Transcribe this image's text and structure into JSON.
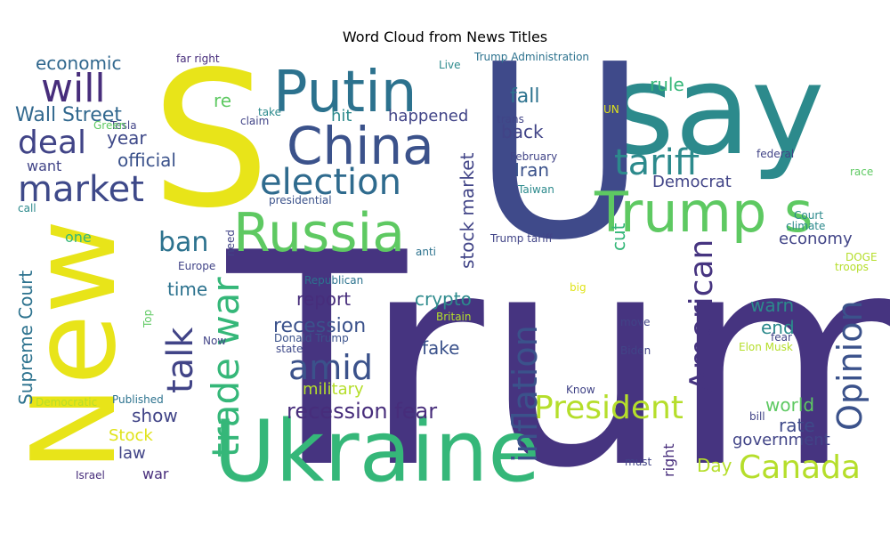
{
  "chart_data": {
    "type": "wordcloud",
    "title": "Word Cloud from News Titles",
    "words": [
      {
        "text": "Trump",
        "weight": 100,
        "color": "#463480"
      },
      {
        "text": "say",
        "weight": 58,
        "color": "#2c8a8c"
      },
      {
        "text": "U",
        "weight": 62,
        "color": "#3f4a8a"
      },
      {
        "text": "S",
        "weight": 60,
        "color": "#e8e419"
      },
      {
        "text": "New",
        "weight": 48,
        "color": "#e8e419"
      },
      {
        "text": "Ukraine",
        "weight": 40,
        "color": "#35b779"
      },
      {
        "text": "Putin",
        "weight": 22,
        "color": "#2c728e"
      },
      {
        "text": "China",
        "weight": 20,
        "color": "#3b528b"
      },
      {
        "text": "Russia",
        "weight": 21,
        "color": "#5ec962"
      },
      {
        "text": "Trump s",
        "weight": 22,
        "color": "#5ec962"
      },
      {
        "text": "election",
        "weight": 15,
        "color": "#2f6b8e"
      },
      {
        "text": "tariff",
        "weight": 14,
        "color": "#2c8a8c"
      },
      {
        "text": "market",
        "weight": 13,
        "color": "#3e4989"
      },
      {
        "text": "will",
        "weight": 13,
        "color": "#472d7b"
      },
      {
        "text": "deal",
        "weight": 11,
        "color": "#414487"
      },
      {
        "text": "Wall Street",
        "weight": 8,
        "color": "#31688e"
      },
      {
        "text": "economic",
        "weight": 6,
        "color": "#31688e"
      },
      {
        "text": "year",
        "weight": 6,
        "color": "#3e4989"
      },
      {
        "text": "official",
        "weight": 7,
        "color": "#3b528b"
      },
      {
        "text": "want",
        "weight": 5,
        "color": "#414487"
      },
      {
        "text": "re",
        "weight": 6,
        "color": "#5ec962"
      },
      {
        "text": "hit",
        "weight": 5,
        "color": "#2c8a8c"
      },
      {
        "text": "happened",
        "weight": 6,
        "color": "#414487"
      },
      {
        "text": "fall",
        "weight": 6,
        "color": "#2c728e"
      },
      {
        "text": "rule",
        "weight": 6,
        "color": "#35b779"
      },
      {
        "text": "back",
        "weight": 6,
        "color": "#414487"
      },
      {
        "text": "Iran",
        "weight": 6,
        "color": "#3b528b"
      },
      {
        "text": "Democrat",
        "weight": 5,
        "color": "#414487"
      },
      {
        "text": "ban",
        "weight": 10,
        "color": "#2c728e"
      },
      {
        "text": "talk",
        "weight": 13,
        "color": "#414487"
      },
      {
        "text": "time",
        "weight": 6,
        "color": "#2c728e"
      },
      {
        "text": "trade war",
        "weight": 15,
        "color": "#35b779"
      },
      {
        "text": "amid",
        "weight": 15,
        "color": "#3b528b"
      },
      {
        "text": "report",
        "weight": 6,
        "color": "#472d7b"
      },
      {
        "text": "recession",
        "weight": 7,
        "color": "#3b528b"
      },
      {
        "text": "recession fear",
        "weight": 8,
        "color": "#472d7b"
      },
      {
        "text": "military",
        "weight": 6,
        "color": "#b5de2b"
      },
      {
        "text": "crypto",
        "weight": 6,
        "color": "#2c8a8c"
      },
      {
        "text": "fake",
        "weight": 6,
        "color": "#3b528b"
      },
      {
        "text": "inflation",
        "weight": 15,
        "color": "#3b528b"
      },
      {
        "text": "stock market",
        "weight": 6,
        "color": "#414487"
      },
      {
        "text": "cut",
        "weight": 6,
        "color": "#35b779"
      },
      {
        "text": "President",
        "weight": 13,
        "color": "#b5de2b"
      },
      {
        "text": "American",
        "weight": 12,
        "color": "#463480"
      },
      {
        "text": "Opinion",
        "weight": 13,
        "color": "#3b528b"
      },
      {
        "text": "Canada",
        "weight": 13,
        "color": "#b5de2b"
      },
      {
        "text": "warn",
        "weight": 6,
        "color": "#2c8a8c"
      },
      {
        "text": "end",
        "weight": 6,
        "color": "#2c8a8c"
      },
      {
        "text": "world",
        "weight": 6,
        "color": "#5ec962"
      },
      {
        "text": "rate",
        "weight": 6,
        "color": "#3e4989"
      },
      {
        "text": "government",
        "weight": 6,
        "color": "#414487"
      },
      {
        "text": "economy",
        "weight": 6,
        "color": "#414487"
      },
      {
        "text": "Day",
        "weight": 6,
        "color": "#b5de2b"
      },
      {
        "text": "right",
        "weight": 5,
        "color": "#472d7b"
      },
      {
        "text": "show",
        "weight": 6,
        "color": "#414487"
      },
      {
        "text": "Stock",
        "weight": 6,
        "color": "#e0e319"
      },
      {
        "text": "law",
        "weight": 6,
        "color": "#414487"
      },
      {
        "text": "war",
        "weight": 5,
        "color": "#472d7b"
      },
      {
        "text": "Supreme Court",
        "weight": 6,
        "color": "#2c728e"
      },
      {
        "text": "one",
        "weight": 5,
        "color": "#35b779"
      },
      {
        "text": "far right",
        "weight": 3,
        "color": "#472d7b"
      },
      {
        "text": "Trump Administration",
        "weight": 3,
        "color": "#2c728e"
      },
      {
        "text": "Live",
        "weight": 3,
        "color": "#2c8a8c"
      },
      {
        "text": "trans",
        "weight": 3,
        "color": "#414487"
      },
      {
        "text": "UN",
        "weight": 3,
        "color": "#e0e319"
      },
      {
        "text": "take",
        "weight": 3,
        "color": "#2c8a8c"
      },
      {
        "text": "claim",
        "weight": 3,
        "color": "#414487"
      },
      {
        "text": "Tesla",
        "weight": 3,
        "color": "#414487"
      },
      {
        "text": "Green",
        "weight": 3,
        "color": "#5ec962"
      },
      {
        "text": "February",
        "weight": 3,
        "color": "#414487"
      },
      {
        "text": "federal",
        "weight": 3,
        "color": "#414487"
      },
      {
        "text": "race",
        "weight": 3,
        "color": "#5ec962"
      },
      {
        "text": "Taiwan",
        "weight": 3,
        "color": "#2c8a8c"
      },
      {
        "text": "presidential",
        "weight": 3,
        "color": "#3b528b"
      },
      {
        "text": "Court",
        "weight": 3,
        "color": "#2c8a8c"
      },
      {
        "text": "climate",
        "weight": 3,
        "color": "#2c8a8c"
      },
      {
        "text": "call",
        "weight": 3,
        "color": "#2c8a8c"
      },
      {
        "text": "Trump tariff",
        "weight": 3,
        "color": "#414487"
      },
      {
        "text": "need",
        "weight": 3,
        "color": "#414487"
      },
      {
        "text": "anti",
        "weight": 3,
        "color": "#2c728e"
      },
      {
        "text": "Europe",
        "weight": 3,
        "color": "#414487"
      },
      {
        "text": "DOGE",
        "weight": 3,
        "color": "#b5de2b"
      },
      {
        "text": "troops",
        "weight": 3,
        "color": "#b5de2b"
      },
      {
        "text": "Republican",
        "weight": 3,
        "color": "#2c728e"
      },
      {
        "text": "big",
        "weight": 3,
        "color": "#e0e319"
      },
      {
        "text": "Top",
        "weight": 3,
        "color": "#5ec962"
      },
      {
        "text": "Britain",
        "weight": 3,
        "color": "#b5de2b"
      },
      {
        "text": "move",
        "weight": 3,
        "color": "#414487"
      },
      {
        "text": "Donald Trump",
        "weight": 3,
        "color": "#3b528b"
      },
      {
        "text": "Now",
        "weight": 3,
        "color": "#414487"
      },
      {
        "text": "state",
        "weight": 3,
        "color": "#3e4989"
      },
      {
        "text": "fear",
        "weight": 3,
        "color": "#414487"
      },
      {
        "text": "Elon Musk",
        "weight": 3,
        "color": "#b5de2b"
      },
      {
        "text": "Biden",
        "weight": 3,
        "color": "#414487"
      },
      {
        "text": "Know",
        "weight": 3,
        "color": "#414487"
      },
      {
        "text": "Published",
        "weight": 3,
        "color": "#2c728e"
      },
      {
        "text": "Democratic",
        "weight": 3,
        "color": "#b5de2b"
      },
      {
        "text": "bill",
        "weight": 3,
        "color": "#414487"
      },
      {
        "text": "must",
        "weight": 3,
        "color": "#414487"
      },
      {
        "text": "Israel",
        "weight": 3,
        "color": "#472d7b"
      }
    ]
  }
}
